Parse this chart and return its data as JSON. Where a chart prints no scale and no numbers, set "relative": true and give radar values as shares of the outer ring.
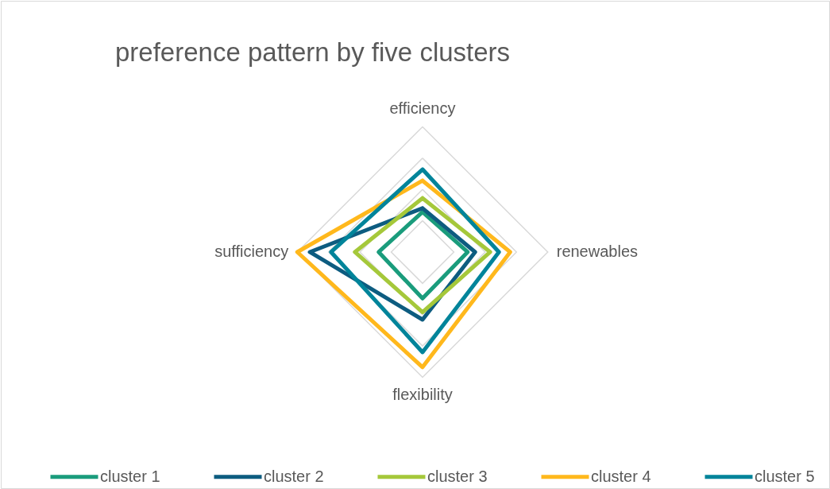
{
  "chart_data": {
    "type": "radar",
    "title": "preference pattern by five clusters",
    "relative": true,
    "grid": true,
    "legend": "bottom",
    "categories": [
      "efficiency",
      "renewables",
      "flexibility",
      "sufficiency"
    ],
    "series": [
      {
        "name": "cluster 1",
        "color": "#1a9c7c",
        "values": [
          0.32,
          0.36,
          0.37,
          0.35
        ]
      },
      {
        "name": "cluster 2",
        "color": "#0d5c80",
        "values": [
          0.35,
          0.42,
          0.54,
          0.9
        ]
      },
      {
        "name": "cluster 3",
        "color": "#a5c83a",
        "values": [
          0.43,
          0.54,
          0.48,
          0.54
        ]
      },
      {
        "name": "cluster 4",
        "color": "#ffb81c",
        "values": [
          0.57,
          0.7,
          0.92,
          1
        ]
      },
      {
        "name": "cluster 5",
        "color": "#00849a",
        "values": [
          0.66,
          0.61,
          0.8,
          0.73
        ]
      }
    ]
  }
}
